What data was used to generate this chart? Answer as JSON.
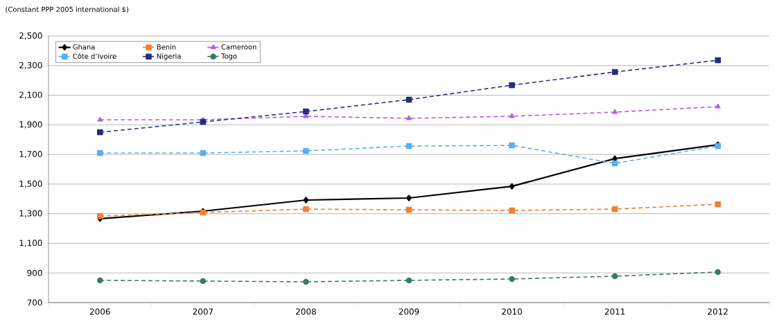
{
  "chart_data": {
    "type": "line",
    "ylabel": "(Constant PPP 2005 international $)",
    "categories": [
      "2006",
      "2007",
      "2008",
      "2009",
      "2010",
      "2011",
      "2012"
    ],
    "series": [
      {
        "name": "Ghana",
        "color": "#000000",
        "marker": "diamond",
        "line_style": "solid",
        "values": [
          1266,
          1317,
          1392,
          1406,
          1485,
          1672,
          1766
        ]
      },
      {
        "name": "Benin",
        "color": "#f47f2f",
        "marker": "square",
        "line_style": "dashed",
        "values": [
          1284,
          1308,
          1331,
          1326,
          1322,
          1331,
          1364
        ]
      },
      {
        "name": "Cameroon",
        "color": "#b15cf0",
        "marker": "triangle",
        "line_style": "dashed",
        "values": [
          1934,
          1934,
          1958,
          1944,
          1958,
          1986,
          2023
        ]
      },
      {
        "name": "Côte d’Ivoire",
        "color": "#5aaef2",
        "marker": "square",
        "line_style": "dashed",
        "values": [
          1710,
          1710,
          1724,
          1757,
          1761,
          1640,
          1757
        ]
      },
      {
        "name": "Nigeria",
        "color": "#232e80",
        "marker": "square",
        "line_style": "dashed",
        "values": [
          1850,
          1920,
          1990,
          2070,
          2168,
          2257,
          2336
        ]
      },
      {
        "name": "Togo",
        "color": "#3a7a64",
        "marker": "circle",
        "line_style": "dashed",
        "values": [
          850,
          845,
          840,
          850,
          859,
          878,
          906
        ]
      }
    ],
    "ylim": [
      700,
      2500
    ],
    "yticks": [
      700,
      900,
      {
        "value": 1100,
        "label": "1,100"
      },
      {
        "value": 1300,
        "label": "1,300"
      },
      {
        "value": 1500,
        "label": "1,500"
      },
      {
        "value": 1700,
        "label": "1,700"
      },
      {
        "value": 1900,
        "label": "1,900"
      },
      {
        "value": 2100,
        "label": "2,100"
      },
      {
        "value": 2300,
        "label": "2,300"
      },
      {
        "value": 2500,
        "label": "2,500"
      }
    ],
    "grid": "y",
    "legend": "top left"
  }
}
